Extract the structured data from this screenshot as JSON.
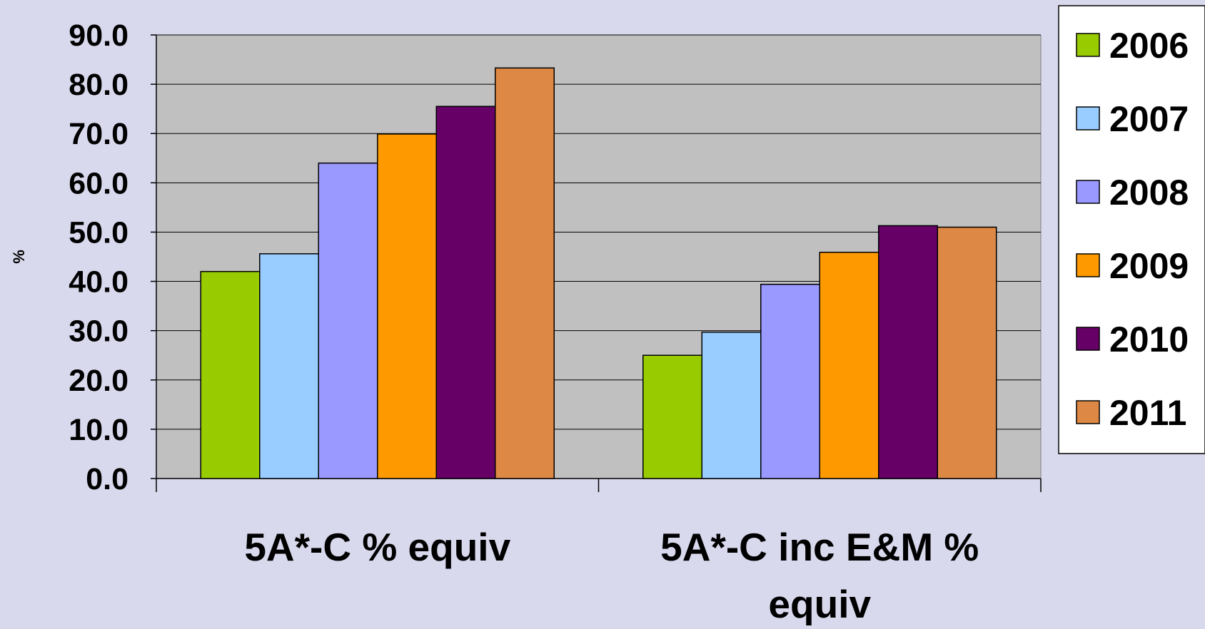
{
  "chart_data": {
    "type": "bar",
    "title": "",
    "xlabel": "",
    "ylabel": "%",
    "ylim": [
      0,
      90
    ],
    "yticks": [
      "0.0",
      "10.0",
      "20.0",
      "30.0",
      "40.0",
      "50.0",
      "60.0",
      "70.0",
      "80.0",
      "90.0"
    ],
    "categories": [
      "5A*-C % equiv",
      "5A*-C inc E&M % equiv"
    ],
    "grid": true,
    "legend_position": "right",
    "plot_background": "#c0c0c0",
    "series": [
      {
        "name": "2006",
        "color": "#99cc00",
        "values": [
          42.0,
          25.0
        ]
      },
      {
        "name": "2007",
        "color": "#99ccff",
        "values": [
          45.6,
          29.7
        ]
      },
      {
        "name": "2008",
        "color": "#9999ff",
        "values": [
          64.0,
          39.4
        ]
      },
      {
        "name": "2009",
        "color": "#ff9900",
        "values": [
          69.9,
          45.9
        ]
      },
      {
        "name": "2010",
        "color": "#660066",
        "values": [
          75.5,
          51.3
        ]
      },
      {
        "name": "2011",
        "color": "#dd8844",
        "values": [
          83.3,
          51.0
        ]
      }
    ]
  }
}
